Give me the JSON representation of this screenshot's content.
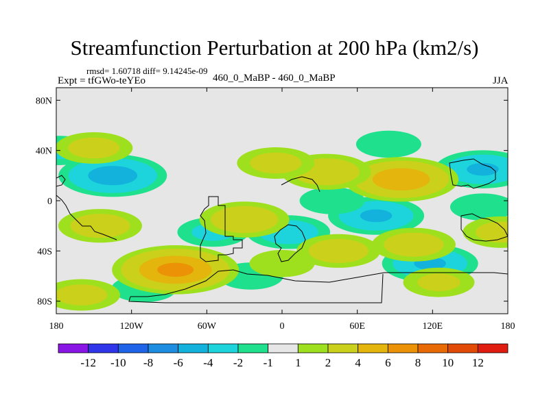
{
  "header": {
    "title": "Streamfunction Perturbation at 200 hPa (km2/s)",
    "stats": "rmsd= 1.60718 diff= 9.14245e-09",
    "experiment": "Expt = tfGWo-teYEo",
    "comparison": "460_0_MaBP - 460_0_MaBP",
    "season": "JJA"
  },
  "chart_data": {
    "type": "heatmap",
    "title": "Streamfunction Perturbation at 200 hPa (km2/s)",
    "x_axis": {
      "label": "",
      "range": [
        -180,
        180
      ],
      "ticks": [
        {
          "value": -180,
          "label": "180"
        },
        {
          "value": -120,
          "label": "120W"
        },
        {
          "value": -60,
          "label": "60W"
        },
        {
          "value": 0,
          "label": "0"
        },
        {
          "value": 60,
          "label": "60E"
        },
        {
          "value": 120,
          "label": "120E"
        },
        {
          "value": 180,
          "label": "180"
        }
      ]
    },
    "y_axis": {
      "label": "",
      "range": [
        -90,
        90
      ],
      "ticks": [
        {
          "value": 80,
          "label": "80N"
        },
        {
          "value": 40,
          "label": "40N"
        },
        {
          "value": 0,
          "label": "0"
        },
        {
          "value": -40,
          "label": "40S"
        },
        {
          "value": -80,
          "label": "80S"
        }
      ]
    },
    "colorbar": {
      "labels": [
        "-12",
        "-10",
        "-8",
        "-6",
        "-4",
        "-2",
        "-1",
        "1",
        "2",
        "4",
        "6",
        "8",
        "10",
        "12"
      ],
      "colors": [
        "#8a16e6",
        "#2f35e8",
        "#1f63e8",
        "#1c8de0",
        "#12b2dd",
        "#1ed4dc",
        "#1fe08c",
        "#e6e6e6",
        "#9ee01e",
        "#cbd11a",
        "#e3b50d",
        "#eb9206",
        "#e86a05",
        "#e24b07",
        "#e01b10"
      ]
    },
    "field_features": [
      {
        "lon": -135,
        "lat": 20,
        "value": -5
      },
      {
        "lon": -178,
        "lat": 40,
        "value": -2
      },
      {
        "lon": -55,
        "lat": -25,
        "value": -2
      },
      {
        "lon": 5,
        "lat": -25,
        "value": -3
      },
      {
        "lon": 75,
        "lat": -12,
        "value": -4
      },
      {
        "lon": 118,
        "lat": -50,
        "value": -4
      },
      {
        "lon": 160,
        "lat": 25,
        "value": -4
      },
      {
        "lon": 85,
        "lat": 45,
        "value": -1.5
      },
      {
        "lon": 40,
        "lat": 0,
        "value": -1.5
      },
      {
        "lon": -25,
        "lat": -60,
        "value": -1.5
      },
      {
        "lon": -110,
        "lat": -70,
        "value": -1.5
      },
      {
        "lon": 160,
        "lat": -5,
        "value": -1.5
      },
      {
        "lon": -85,
        "lat": -55,
        "value": 6.5
      },
      {
        "lon": 95,
        "lat": 17,
        "value": 5.5
      },
      {
        "lon": 35,
        "lat": 23,
        "value": 3.5
      },
      {
        "lon": -145,
        "lat": -20,
        "value": 3
      },
      {
        "lon": -30,
        "lat": -15,
        "value": 3.5
      },
      {
        "lon": 45,
        "lat": -40,
        "value": 3
      },
      {
        "lon": -160,
        "lat": -75,
        "value": 2.5
      },
      {
        "lon": -150,
        "lat": 42,
        "value": 2.5
      },
      {
        "lon": -5,
        "lat": 30,
        "value": 2.5
      },
      {
        "lon": 105,
        "lat": -35,
        "value": 3
      },
      {
        "lon": 175,
        "lat": -25,
        "value": 2.5
      },
      {
        "lon": 125,
        "lat": -65,
        "value": 2
      },
      {
        "lon": 0,
        "lat": -50,
        "value": 1.5
      }
    ]
  }
}
